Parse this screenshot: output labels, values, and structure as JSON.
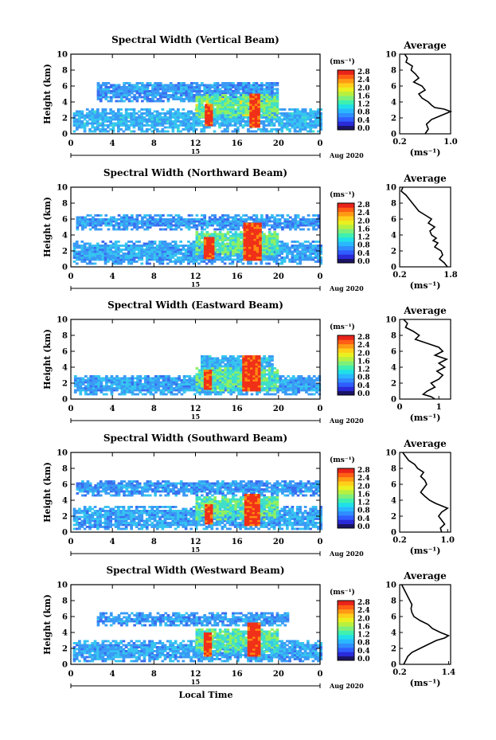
{
  "figure": {
    "xlabel": "Local Time",
    "date_label": "Aug 2020",
    "unit_label": "(ms⁻¹)",
    "colorbar_ticks": [
      "2.8",
      "2.4",
      "2.0",
      "1.6",
      "1.2",
      "0.8",
      "0.4",
      "0.0"
    ],
    "colorbar_colors": [
      "#1b1464",
      "#2a2bd8",
      "#2f5dff",
      "#2f8dff",
      "#29b8ff",
      "#1fe0e8",
      "#3ff0b0",
      "#7ef07a",
      "#b8f040",
      "#eaf020",
      "#ffcf1a",
      "#ff9a14",
      "#ff5e14",
      "#e8231a"
    ],
    "field_colors": [
      "#2840e0",
      "#3a6cf0",
      "#3a9af5",
      "#36c4f0",
      "#40e0c8",
      "#90f060",
      "#f0e020",
      "#ff8a10",
      "#f03018"
    ]
  },
  "chart_data": [
    {
      "type": "heatmap",
      "title": "Spectral Width (Vertical Beam)",
      "xlabel": "",
      "ylabel": "Height (km)",
      "xlim": [
        0,
        24
      ],
      "ylim": [
        0,
        10
      ],
      "x_ticks": [
        "0",
        "4",
        "8",
        "12",
        "16",
        "20",
        "0"
      ],
      "y_ticks": [
        "0",
        "2",
        "4",
        "6",
        "8",
        "10"
      ],
      "day_label": "15",
      "colorbar": {
        "label": "(ms⁻¹)",
        "range": [
          0,
          2.8
        ]
      },
      "layers": [
        {
          "t0": 0.2,
          "t1": 24,
          "h0": 0.2,
          "h1": 3.0,
          "level": 0.9
        },
        {
          "t0": 2.5,
          "t1": 20,
          "h0": 4.0,
          "h1": 6.5,
          "level": 0.7
        },
        {
          "t0": 12,
          "t1": 20,
          "h0": 2.0,
          "h1": 5.0,
          "level": 1.6
        },
        {
          "t0": 12.9,
          "t1": 13.6,
          "h0": 1.0,
          "h1": 3.6,
          "level": 2.8
        },
        {
          "t0": 17.2,
          "t1": 18.2,
          "h0": 0.8,
          "h1": 5.0,
          "level": 2.8
        }
      ],
      "profile": {
        "title": "Average",
        "xlabel": "(ms⁻¹)",
        "x_ticks": [
          "0.2",
          "1.0"
        ],
        "xlim": [
          0.2,
          1.0
        ],
        "x": [
          0.28,
          0.32,
          0.3,
          0.4,
          0.38,
          0.45,
          0.5,
          0.42,
          0.55,
          0.6,
          0.5,
          0.55,
          0.65,
          0.7,
          0.75,
          0.9,
          1.0,
          0.85,
          0.7,
          0.62,
          0.65,
          0.6
        ],
        "y": [
          10,
          9.5,
          9,
          8.5,
          8,
          7.5,
          7,
          6.5,
          6,
          5.5,
          5,
          4.5,
          4,
          3.6,
          3.3,
          3.1,
          2.8,
          2.3,
          1.8,
          1.2,
          0.6,
          0
        ]
      }
    },
    {
      "type": "heatmap",
      "title": "Spectral Width (Northward Beam)",
      "xlabel": "",
      "ylabel": "Height (km)",
      "xlim": [
        0,
        24
      ],
      "ylim": [
        0,
        10
      ],
      "x_ticks": [
        "0",
        "4",
        "8",
        "12",
        "16",
        "20",
        "0"
      ],
      "y_ticks": [
        "0",
        "2",
        "4",
        "6",
        "8",
        "10"
      ],
      "day_label": "15",
      "colorbar": {
        "label": "(ms⁻¹)",
        "range": [
          0,
          2.8
        ]
      },
      "layers": [
        {
          "t0": 0.2,
          "t1": 24,
          "h0": 0.3,
          "h1": 3.2,
          "level": 0.8
        },
        {
          "t0": 0.5,
          "t1": 24,
          "h0": 4.6,
          "h1": 6.4,
          "level": 0.7
        },
        {
          "t0": 12,
          "t1": 20,
          "h0": 1.5,
          "h1": 4.5,
          "level": 1.5
        },
        {
          "t0": 12.8,
          "t1": 13.6,
          "h0": 1.0,
          "h1": 3.6,
          "level": 2.8
        },
        {
          "t0": 16.6,
          "t1": 18.2,
          "h0": 0.8,
          "h1": 5.5,
          "level": 2.8
        }
      ],
      "profile": {
        "title": "Average",
        "xlabel": "(ms⁻¹)",
        "x_ticks": [
          "0.2",
          "1.8"
        ],
        "xlim": [
          0.2,
          1.8
        ],
        "x": [
          0.3,
          0.25,
          0.4,
          0.5,
          0.6,
          0.7,
          0.8,
          1.0,
          1.2,
          1.1,
          1.3,
          1.15,
          1.2,
          1.35,
          1.25,
          1.4,
          1.3,
          1.5,
          1.55,
          1.45,
          1.6,
          1.7
        ],
        "y": [
          10,
          9.5,
          9,
          8.5,
          8,
          7.5,
          7,
          6.5,
          6,
          5.5,
          5,
          4.5,
          4,
          3.6,
          3.3,
          3,
          2.5,
          2,
          1.5,
          1.0,
          0.5,
          0
        ]
      }
    },
    {
      "type": "heatmap",
      "title": "Spectral Width (Eastward Beam)",
      "xlabel": "",
      "ylabel": "Height (km)",
      "xlim": [
        0,
        24
      ],
      "ylim": [
        0,
        10
      ],
      "x_ticks": [
        "0",
        "4",
        "8",
        "12",
        "16",
        "20",
        "0"
      ],
      "y_ticks": [
        "0",
        "2",
        "4",
        "6",
        "8",
        "10"
      ],
      "day_label": "15",
      "colorbar": {
        "label": "(ms⁻¹)",
        "range": [
          0,
          2.8
        ]
      },
      "layers": [
        {
          "t0": 0.3,
          "t1": 24,
          "h0": 0.5,
          "h1": 3.0,
          "level": 0.8
        },
        {
          "t0": 12.5,
          "t1": 19.5,
          "h0": 3.0,
          "h1": 5.5,
          "level": 0.9
        },
        {
          "t0": 12,
          "t1": 20,
          "h0": 1.0,
          "h1": 3.8,
          "level": 1.5
        },
        {
          "t0": 12.8,
          "t1": 13.5,
          "h0": 1.2,
          "h1": 3.6,
          "level": 2.8
        },
        {
          "t0": 16.5,
          "t1": 18.2,
          "h0": 1.0,
          "h1": 5.5,
          "level": 2.8
        }
      ],
      "profile": {
        "title": "Average",
        "xlabel": "(ms⁻¹)",
        "x_ticks": [
          "0",
          "1"
        ],
        "xlim": [
          0,
          1.3
        ],
        "x": [
          0.1,
          0.2,
          0.15,
          0.35,
          0.5,
          0.4,
          0.7,
          1.0,
          1.1,
          0.9,
          1.2,
          1.0,
          1.15,
          0.95,
          1.1,
          1.0,
          0.8,
          0.9,
          0.7,
          0.6,
          0.8,
          0.9
        ],
        "y": [
          10,
          9.5,
          9,
          8.5,
          8,
          7.5,
          7,
          6.5,
          6,
          5.5,
          5,
          4.5,
          4,
          3.5,
          3,
          2.5,
          2,
          1.5,
          1,
          0.6,
          0.3,
          0
        ]
      }
    },
    {
      "type": "heatmap",
      "title": "Spectral Width (Southward Beam)",
      "xlabel": "",
      "ylabel": "Height (km)",
      "xlim": [
        0,
        24
      ],
      "ylim": [
        0,
        10
      ],
      "x_ticks": [
        "0",
        "4",
        "8",
        "12",
        "16",
        "20",
        "0"
      ],
      "y_ticks": [
        "0",
        "2",
        "4",
        "6",
        "8",
        "10"
      ],
      "day_label": "15",
      "colorbar": {
        "label": "(ms⁻¹)",
        "range": [
          0,
          2.8
        ]
      },
      "layers": [
        {
          "t0": 0.2,
          "t1": 24,
          "h0": 0.3,
          "h1": 3.2,
          "level": 0.8
        },
        {
          "t0": 0.5,
          "t1": 24,
          "h0": 4.5,
          "h1": 6.5,
          "level": 0.7
        },
        {
          "t0": 12,
          "t1": 20,
          "h0": 1.5,
          "h1": 4.5,
          "level": 1.5
        },
        {
          "t0": 12.9,
          "t1": 13.6,
          "h0": 1.0,
          "h1": 3.5,
          "level": 2.8
        },
        {
          "t0": 16.7,
          "t1": 18.2,
          "h0": 0.8,
          "h1": 4.8,
          "level": 2.8
        }
      ],
      "profile": {
        "title": "Average",
        "xlabel": "(ms⁻¹)",
        "x_ticks": [
          "0.2",
          "1.0"
        ],
        "xlim": [
          0.2,
          1.05
        ],
        "x": [
          0.25,
          0.3,
          0.35,
          0.45,
          0.5,
          0.6,
          0.55,
          0.62,
          0.65,
          0.6,
          0.55,
          0.62,
          0.7,
          0.8,
          0.9,
          1.0,
          0.9,
          0.85,
          0.9,
          0.95,
          0.88,
          0.9
        ],
        "y": [
          10,
          9.5,
          9,
          8.5,
          8,
          7.5,
          7,
          6.5,
          6,
          5.5,
          5,
          4.5,
          4,
          3.6,
          3.3,
          3,
          2.5,
          2,
          1.5,
          1,
          0.5,
          0
        ]
      }
    },
    {
      "type": "heatmap",
      "title": "Spectral Width (Westward Beam)",
      "xlabel": "Local Time",
      "ylabel": "Height (km)",
      "xlim": [
        0,
        24
      ],
      "ylim": [
        0,
        10
      ],
      "x_ticks": [
        "0",
        "4",
        "8",
        "12",
        "16",
        "20",
        "0"
      ],
      "y_ticks": [
        "0",
        "2",
        "4",
        "6",
        "8",
        "10"
      ],
      "day_label": "15",
      "colorbar": {
        "label": "(ms⁻¹)",
        "range": [
          0,
          2.8
        ]
      },
      "layers": [
        {
          "t0": 0.2,
          "t1": 24,
          "h0": 0.3,
          "h1": 3.0,
          "level": 0.8
        },
        {
          "t0": 2.5,
          "t1": 21,
          "h0": 4.8,
          "h1": 6.4,
          "level": 0.7
        },
        {
          "t0": 12,
          "t1": 20,
          "h0": 1.5,
          "h1": 4.5,
          "level": 1.5
        },
        {
          "t0": 12.8,
          "t1": 13.5,
          "h0": 1.0,
          "h1": 3.8,
          "level": 2.8
        },
        {
          "t0": 17,
          "t1": 18.2,
          "h0": 1.0,
          "h1": 5.2,
          "level": 2.8
        }
      ],
      "profile": {
        "title": "Average",
        "xlabel": "(ms⁻¹)",
        "x_ticks": [
          "0.2",
          "1.4"
        ],
        "xlim": [
          0.2,
          1.45
        ],
        "x": [
          0.25,
          0.3,
          0.35,
          0.4,
          0.45,
          0.5,
          0.48,
          0.5,
          0.55,
          0.7,
          0.9,
          1.0,
          1.2,
          1.4,
          1.3,
          1.1,
          0.9,
          0.7,
          0.5,
          0.4,
          0.35,
          0.3
        ],
        "y": [
          10,
          9.5,
          9,
          8.5,
          8,
          7.5,
          7,
          6.5,
          6,
          5.5,
          5,
          4.5,
          4,
          3.6,
          3.3,
          3,
          2.5,
          2,
          1.5,
          1,
          0.5,
          0
        ]
      }
    }
  ]
}
